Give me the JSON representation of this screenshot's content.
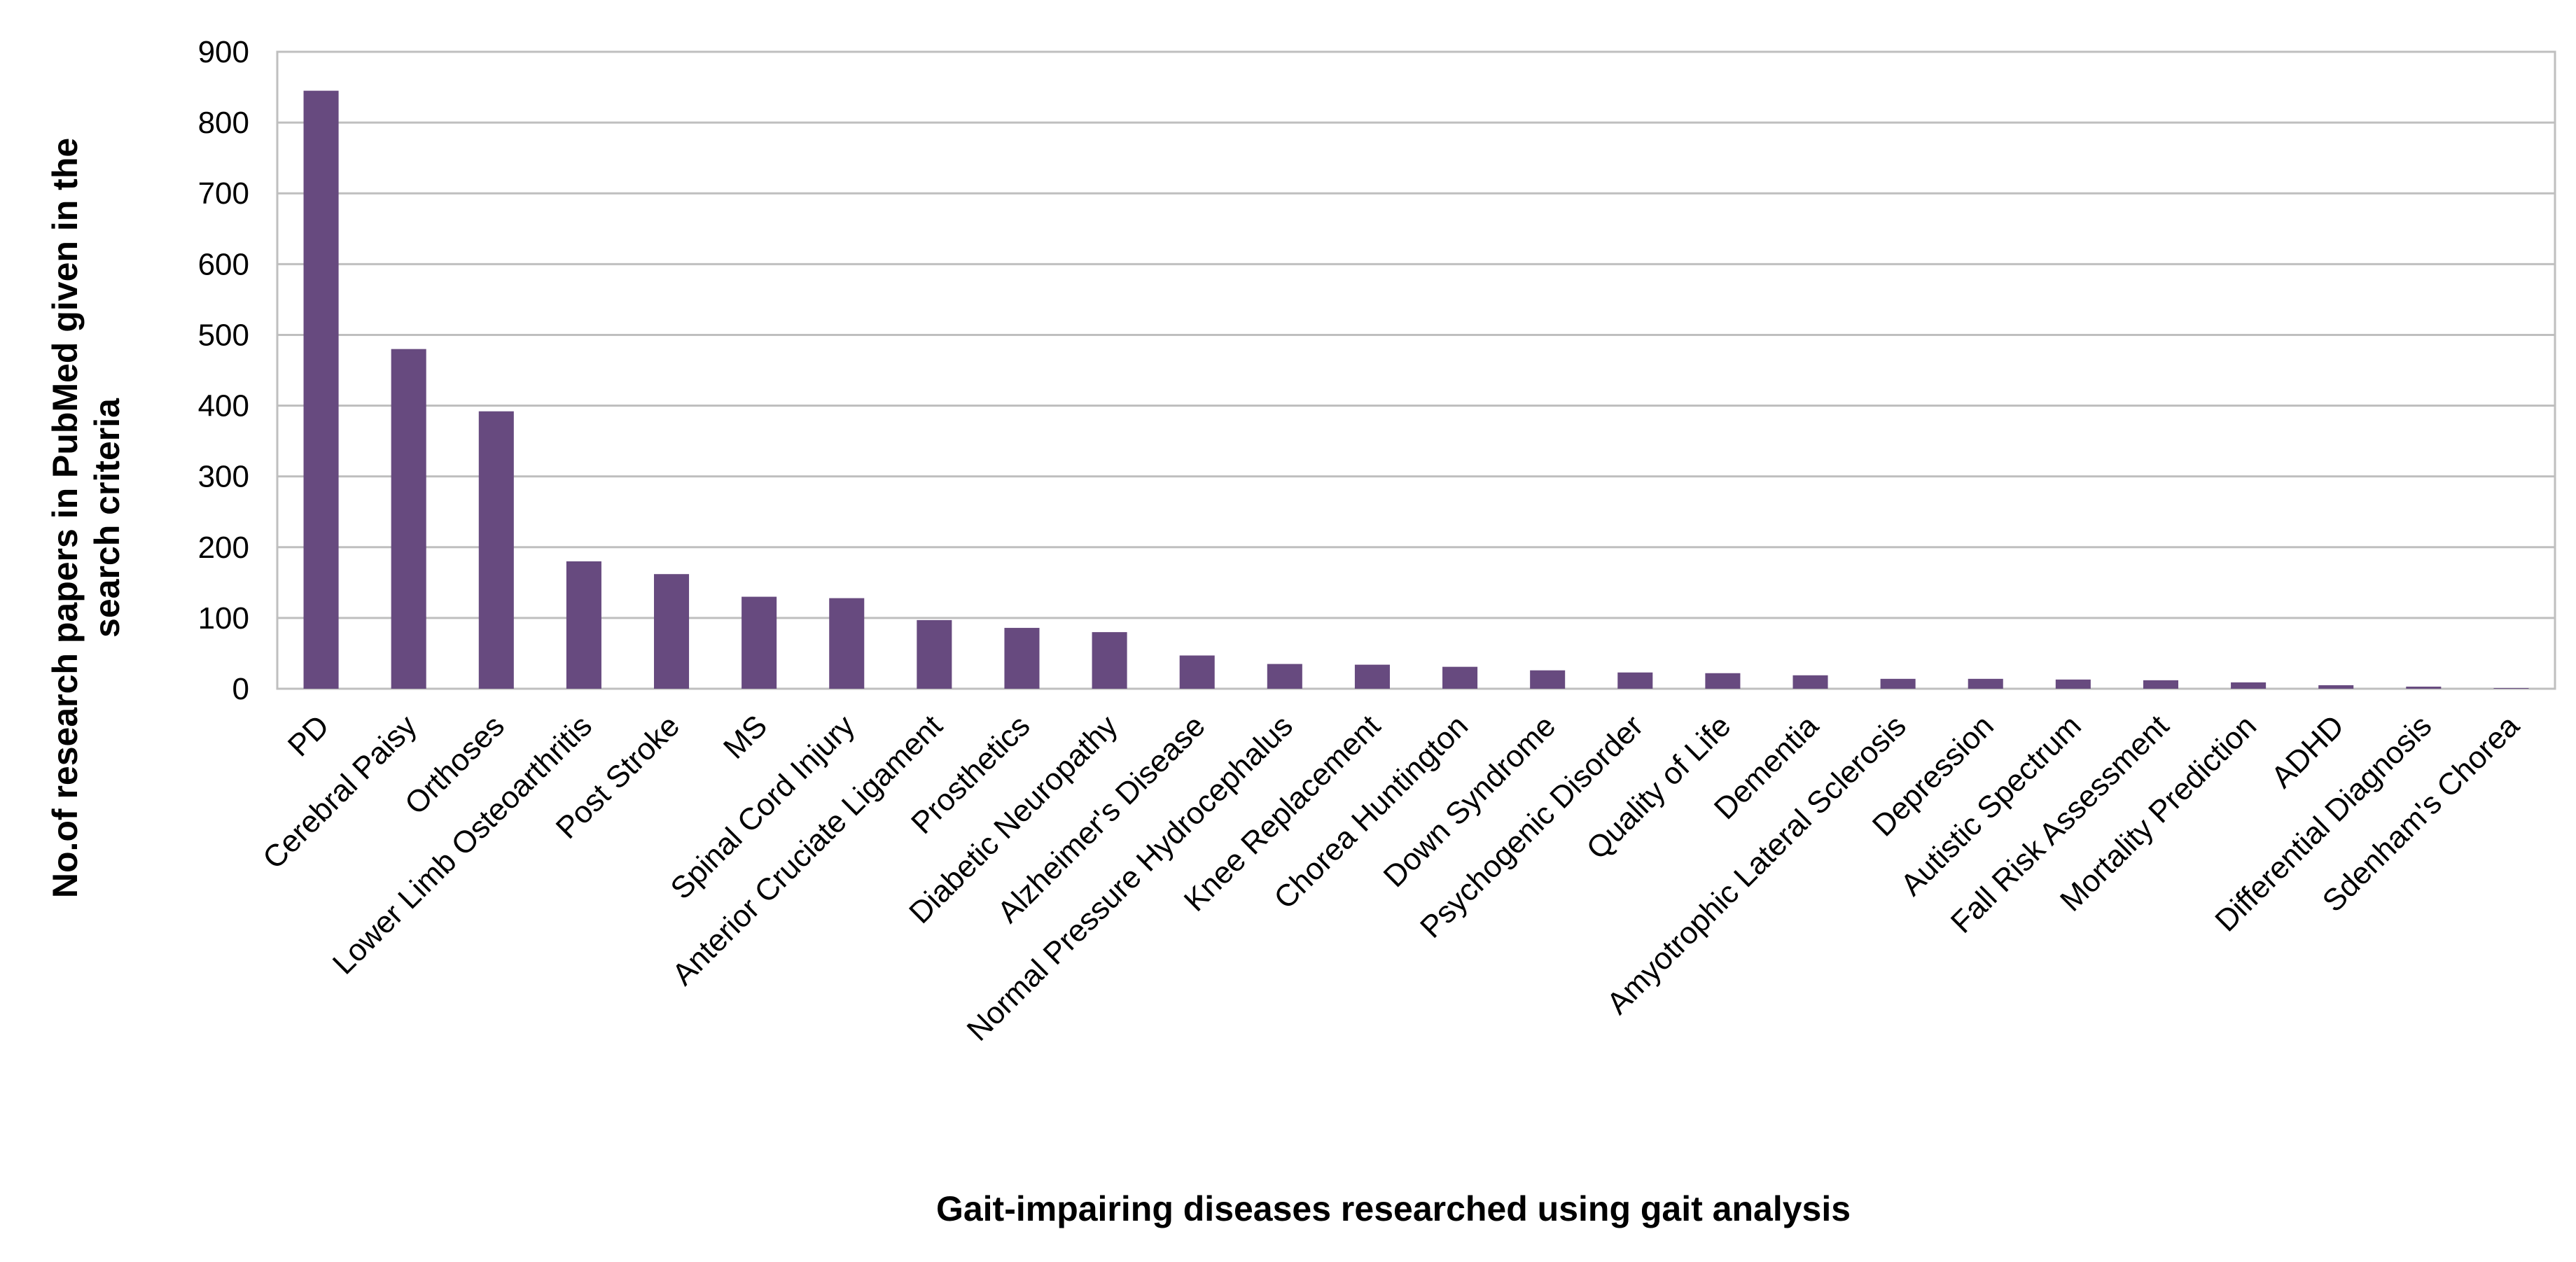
{
  "chart_data": {
    "type": "bar",
    "title": "",
    "xlabel": "Gait-impairing diseases researched using gait analysis",
    "ylabel_lines": [
      "No.of research papers in PubMed given in the",
      "search criteria"
    ],
    "ylim": [
      0,
      900
    ],
    "yticks": [
      0,
      100,
      200,
      300,
      400,
      500,
      600,
      700,
      800,
      900
    ],
    "grid": true,
    "bar_color": "#674a7f",
    "grid_color": "#bfbfbf",
    "categories": [
      "PD",
      "Cerebral Paisy",
      "Orthoses",
      "Lower Limb Osteoarthritis",
      "Post Stroke",
      "MS",
      "Spinal Cord Injury",
      "Anterior Cruciate Ligament",
      "Prosthetics",
      "Diabetic Neuropathy",
      "Alzheimer's Disease",
      "Normal Pressure Hydrocephalus",
      "Knee Replacement",
      "Chorea Huntington",
      "Down Syndrome",
      "Psychogenic Disorder",
      "Quality of Life",
      "Dementia",
      "Amyotrophic Lateral Sclerosis",
      "Depression",
      "Autistic Spectrum",
      "Fall Risk Assessment",
      "Mortality Prediction",
      "ADHD",
      "Differential Diagnosis",
      "Sdenham's Chorea"
    ],
    "values": [
      845,
      480,
      392,
      180,
      162,
      130,
      128,
      97,
      86,
      80,
      47,
      35,
      34,
      31,
      26,
      23,
      22,
      19,
      14,
      14,
      13,
      12,
      9,
      5,
      3,
      1
    ]
  }
}
